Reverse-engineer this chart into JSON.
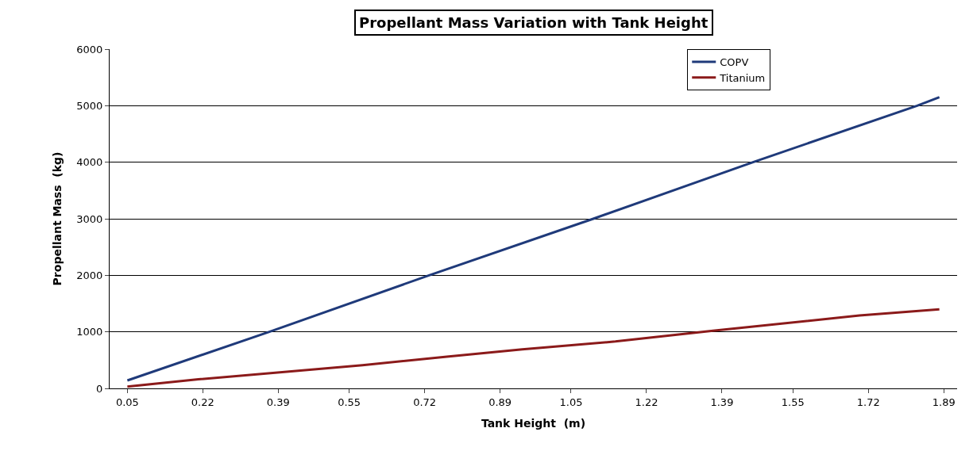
{
  "chart_data": {
    "type": "line",
    "title": "Propellant Mass Variation with Tank Height",
    "xlabel": "Tank Height  (m)",
    "ylabel": "Propellant Mass  (kg)",
    "series": [
      {
        "name": "COPV",
        "color": "#1f3a7a",
        "x": [
          0.05,
          0.37,
          0.73,
          1.1,
          1.46,
          1.83,
          1.88
        ],
        "values": [
          140,
          1000,
          2000,
          3000,
          4000,
          5000,
          5150
        ]
      },
      {
        "name": "Titanium",
        "color": "#8b1a1a",
        "x": [
          0.05,
          0.21,
          0.58,
          0.77,
          0.94,
          1.15,
          1.37,
          1.7,
          1.88
        ],
        "values": [
          30,
          160,
          410,
          560,
          690,
          830,
          1020,
          1290,
          1400
        ]
      }
    ],
    "xlim": [
      0.01,
      1.92
    ],
    "xticks": [
      0.05,
      0.22,
      0.39,
      0.55,
      0.72,
      0.89,
      1.05,
      1.22,
      1.39,
      1.55,
      1.72,
      1.89
    ],
    "ylim": [
      0,
      6000
    ],
    "yticks": [
      0,
      1000,
      2000,
      3000,
      4000,
      5000,
      6000
    ],
    "grid": "y",
    "legend": "top right",
    "marker": "none",
    "line_style": "solid"
  }
}
